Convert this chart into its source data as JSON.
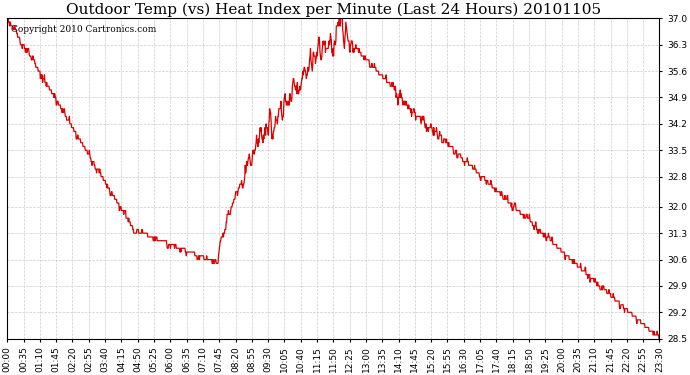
{
  "title": "Outdoor Temp (vs) Heat Index per Minute (Last 24 Hours) 20101105",
  "copyright_text": "Copyright 2010 Cartronics.com",
  "line_color": "#dd0000",
  "background_color": "#ffffff",
  "grid_color": "#cccccc",
  "ylim": [
    28.5,
    37.0
  ],
  "yticks": [
    28.5,
    29.2,
    29.9,
    30.6,
    31.3,
    32.0,
    32.8,
    33.5,
    34.2,
    34.9,
    35.6,
    36.3,
    37.0
  ],
  "xtick_labels": [
    "00:00",
    "00:35",
    "01:10",
    "01:45",
    "02:20",
    "02:55",
    "03:40",
    "04:15",
    "04:50",
    "05:25",
    "06:00",
    "06:35",
    "07:10",
    "07:45",
    "08:20",
    "08:55",
    "09:30",
    "10:05",
    "10:40",
    "11:15",
    "11:50",
    "12:25",
    "13:00",
    "13:35",
    "14:10",
    "14:45",
    "15:20",
    "15:55",
    "16:30",
    "17:05",
    "17:40",
    "18:15",
    "18:50",
    "19:25",
    "20:00",
    "20:35",
    "21:10",
    "21:45",
    "22:20",
    "22:55",
    "23:30"
  ],
  "title_fontsize": 11,
  "tick_fontsize": 6.5,
  "copyright_fontsize": 6.5
}
